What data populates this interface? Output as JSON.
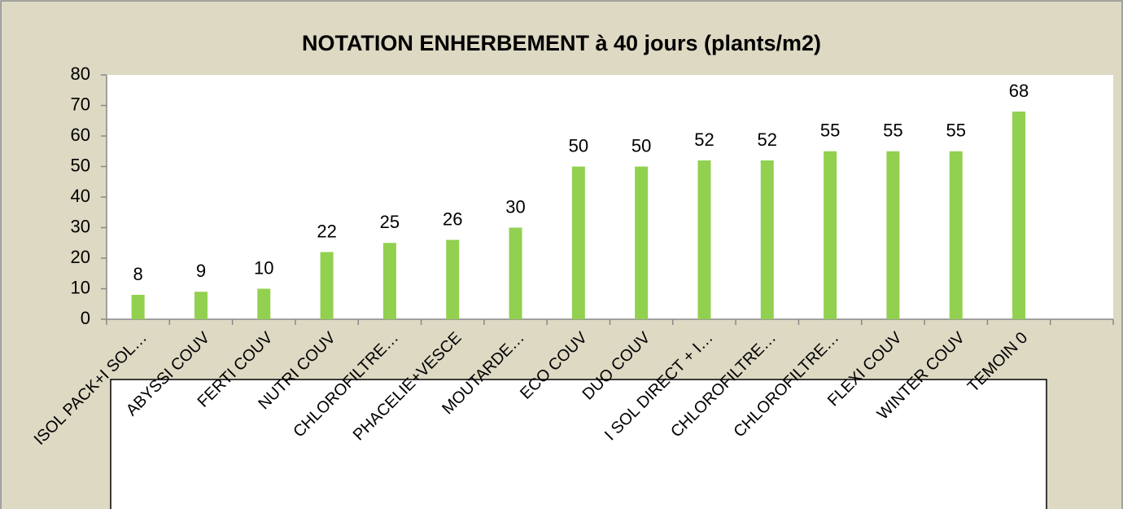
{
  "chart_data": {
    "type": "bar",
    "title": "NOTATION ENHERBEMENT à 40 jours (plants/m2)",
    "categories": [
      "ISOL PACK+I SOL…",
      "ABYSSI COUV",
      "FERTI COUV",
      "NUTRI COUV",
      "CHLOROFILTRE…",
      "PHACELIE+VESCE",
      "MOUTARDE…",
      "ECO COUV",
      "DUO COUV",
      "I SOL DIRECT + I…",
      "CHLOROFILTRE…",
      "CHLOROFILTRE…",
      "FLEXI COUV",
      "WINTER COUV",
      "TEMOIN 0",
      null
    ],
    "values": [
      8,
      9,
      10,
      22,
      25,
      26,
      30,
      50,
      50,
      52,
      52,
      55,
      55,
      55,
      68,
      null
    ],
    "color": "#92d050",
    "ylim": [
      0,
      80
    ],
    "yticks": [
      0,
      10,
      20,
      30,
      40,
      50,
      60,
      70,
      80
    ],
    "grid": false
  }
}
